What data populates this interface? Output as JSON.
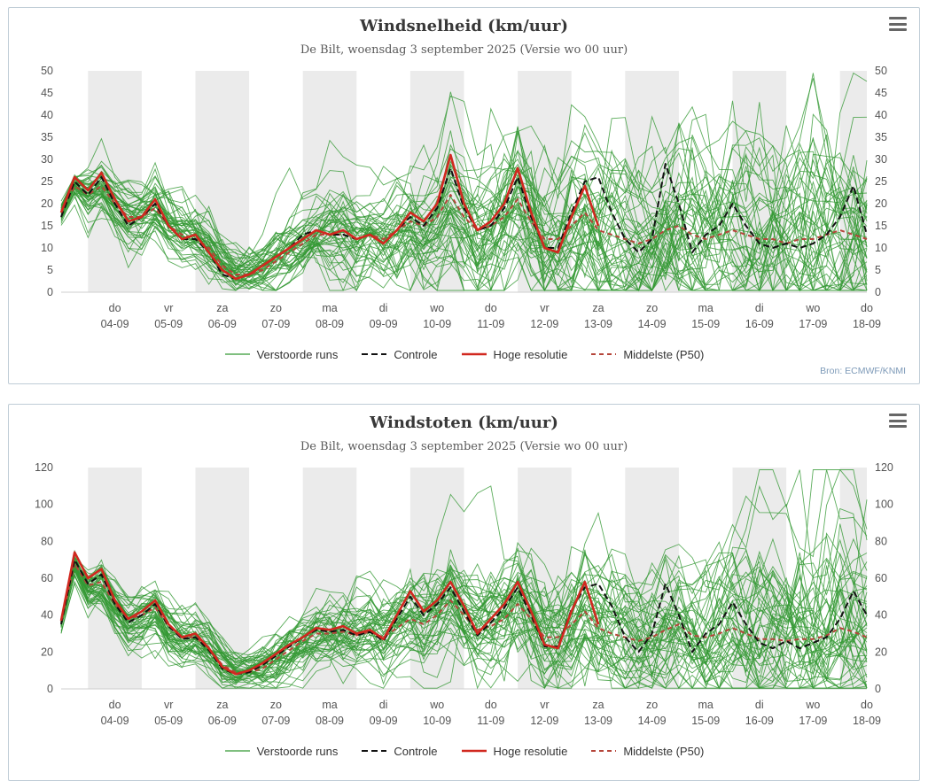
{
  "panels": [
    {
      "title": "Windsnelheid (km/uur)",
      "subtitle": "De Bilt, woensdag 3 september 2025 (Versie wo 00 uur)",
      "source": "Bron: ECMWF/KNMI"
    },
    {
      "title": "Windstoten (km/uur)",
      "subtitle": "De Bilt, woensdag 3 september 2025 (Versie wo 00 uur)",
      "source": ""
    }
  ],
  "legend": {
    "items": [
      {
        "label": "Verstoorde runs",
        "color": "#339933",
        "dash": "",
        "width": 1.2
      },
      {
        "label": "Controle",
        "color": "#111111",
        "dash": "7,4",
        "width": 2
      },
      {
        "label": "Hoge resolutie",
        "color": "#d1281f",
        "dash": "",
        "width": 2.6
      },
      {
        "label": "Middelste (P50)",
        "color": "#b5453a",
        "dash": "5,4",
        "width": 2
      }
    ]
  },
  "chart_data": [
    {
      "type": "line",
      "title": "Windsnelheid (km/uur)",
      "subtitle": "De Bilt, woensdag 3 september 2025 (Versie wo 00 uur)",
      "xlabel": "",
      "ylabel": "",
      "ylim": [
        0,
        50
      ],
      "ytick_step": 5,
      "x_days": {
        "start": 0,
        "end": 15,
        "step_days": 0.25,
        "start_label": "03-09 00 uur"
      },
      "x_ticks": [
        {
          "day": "do",
          "date": "04-09"
        },
        {
          "day": "vr",
          "date": "05-09"
        },
        {
          "day": "za",
          "date": "06-09"
        },
        {
          "day": "zo",
          "date": "07-09"
        },
        {
          "day": "ma",
          "date": "08-09"
        },
        {
          "day": "di",
          "date": "09-09"
        },
        {
          "day": "wo",
          "date": "10-09"
        },
        {
          "day": "do",
          "date": "11-09"
        },
        {
          "day": "vr",
          "date": "12-09"
        },
        {
          "day": "za",
          "date": "13-09"
        },
        {
          "day": "zo",
          "date": "14-09"
        },
        {
          "day": "ma",
          "date": "15-09"
        },
        {
          "day": "di",
          "date": "16-09"
        },
        {
          "day": "wo",
          "date": "17-09"
        },
        {
          "day": "do",
          "date": "18-09"
        }
      ],
      "band_color": "#ebebeb",
      "grid": false,
      "legend_position": "bottom",
      "series": [
        {
          "name": "Hoge resolutie",
          "color": "#d1281f",
          "dash": "",
          "width": 2.6,
          "values": [
            18,
            26,
            23,
            27,
            21,
            16,
            17,
            21,
            15,
            12,
            13,
            9,
            5,
            3,
            4,
            6,
            8,
            10,
            12,
            14,
            13,
            14,
            12,
            13,
            11,
            14,
            18,
            16,
            20,
            31,
            20,
            14,
            16,
            20,
            28,
            18,
            10,
            9,
            17,
            24,
            15
          ]
        },
        {
          "name": "Controle",
          "color": "#111111",
          "dash": "7,4",
          "width": 2,
          "values": [
            17,
            25,
            22,
            26,
            20,
            15,
            17,
            20,
            15,
            12,
            12,
            9,
            4,
            3,
            4,
            6,
            8,
            10,
            13,
            14,
            13,
            13,
            12,
            13,
            11,
            14,
            17,
            15,
            19,
            28,
            19,
            14,
            15,
            19,
            26,
            17,
            10,
            10,
            18,
            25,
            26,
            18,
            12,
            9,
            12,
            29,
            20,
            9,
            13,
            15,
            20,
            15,
            11,
            10,
            11,
            10,
            11,
            13,
            17,
            24,
            13
          ]
        },
        {
          "name": "Middelste (P50)",
          "color": "#b5453a",
          "dash": "5,4",
          "width": 2,
          "values": [
            18,
            24,
            22,
            24,
            20,
            17,
            17,
            19,
            15,
            13,
            12,
            10,
            6,
            4,
            4,
            5,
            7,
            9,
            11,
            13,
            13,
            13,
            12,
            13,
            12,
            14,
            16,
            15,
            17,
            22,
            17,
            14,
            15,
            17,
            21,
            16,
            12,
            12,
            15,
            18,
            14,
            13,
            12,
            11,
            12,
            14,
            15,
            13,
            12,
            13,
            14,
            13,
            12,
            12,
            11,
            12,
            12,
            13,
            14,
            13,
            12
          ]
        }
      ],
      "ensemble": {
        "name": "Verstoorde runs",
        "color": "#339933",
        "members": 50,
        "width": 0.9,
        "opacity": 0.8,
        "base_series": "Middelste (P50)",
        "spread": [
          1,
          1,
          2,
          2,
          2,
          3,
          3,
          3,
          3,
          3,
          3,
          3,
          2,
          2,
          2,
          2,
          3,
          3,
          3,
          3,
          4,
          4,
          4,
          4,
          4,
          5,
          5,
          5,
          5,
          6,
          6,
          6,
          6,
          6,
          7,
          7,
          7,
          7,
          7,
          7,
          8,
          8,
          8,
          8,
          8,
          8,
          9,
          9,
          9,
          9,
          9,
          9,
          10,
          10,
          10,
          10,
          10,
          10,
          10,
          10,
          10
        ]
      }
    },
    {
      "type": "line",
      "title": "Windstoten (km/uur)",
      "subtitle": "De Bilt, woensdag 3 september 2025 (Versie wo 00 uur)",
      "xlabel": "",
      "ylabel": "",
      "ylim": [
        0,
        120
      ],
      "ytick_step": 20,
      "x_days": {
        "start": 0,
        "end": 15,
        "step_days": 0.25,
        "start_label": "03-09 00 uur"
      },
      "x_ticks": [
        {
          "day": "do",
          "date": "04-09"
        },
        {
          "day": "vr",
          "date": "05-09"
        },
        {
          "day": "za",
          "date": "06-09"
        },
        {
          "day": "zo",
          "date": "07-09"
        },
        {
          "day": "ma",
          "date": "08-09"
        },
        {
          "day": "di",
          "date": "09-09"
        },
        {
          "day": "wo",
          "date": "10-09"
        },
        {
          "day": "do",
          "date": "11-09"
        },
        {
          "day": "vr",
          "date": "12-09"
        },
        {
          "day": "za",
          "date": "13-09"
        },
        {
          "day": "zo",
          "date": "14-09"
        },
        {
          "day": "ma",
          "date": "15-09"
        },
        {
          "day": "di",
          "date": "16-09"
        },
        {
          "day": "wo",
          "date": "17-09"
        },
        {
          "day": "do",
          "date": "18-09"
        }
      ],
      "band_color": "#ebebeb",
      "grid": false,
      "legend_position": "bottom",
      "series": [
        {
          "name": "Hoge resolutie",
          "color": "#d1281f",
          "dash": "",
          "width": 2.6,
          "values": [
            37,
            74,
            60,
            65,
            48,
            38,
            42,
            48,
            35,
            28,
            30,
            22,
            12,
            8,
            10,
            14,
            19,
            24,
            28,
            33,
            32,
            34,
            30,
            32,
            27,
            40,
            53,
            42,
            48,
            58,
            45,
            30,
            38,
            46,
            58,
            42,
            24,
            22,
            42,
            58,
            35
          ]
        },
        {
          "name": "Controle",
          "color": "#111111",
          "dash": "7,4",
          "width": 2,
          "values": [
            35,
            70,
            57,
            62,
            46,
            36,
            40,
            46,
            34,
            27,
            28,
            21,
            11,
            8,
            9,
            13,
            18,
            23,
            28,
            32,
            31,
            32,
            29,
            31,
            26,
            38,
            50,
            40,
            46,
            55,
            42,
            29,
            36,
            44,
            55,
            40,
            23,
            23,
            43,
            55,
            57,
            45,
            28,
            20,
            30,
            57,
            40,
            20,
            30,
            35,
            47,
            35,
            25,
            22,
            26,
            22,
            25,
            28,
            38,
            53,
            40
          ]
        },
        {
          "name": "Middelste (P50)",
          "color": "#b5453a",
          "dash": "5,4",
          "width": 2,
          "values": [
            36,
            68,
            56,
            58,
            46,
            38,
            40,
            44,
            34,
            28,
            28,
            22,
            13,
            9,
            9,
            11,
            16,
            21,
            26,
            30,
            30,
            31,
            29,
            31,
            28,
            33,
            38,
            35,
            40,
            48,
            40,
            32,
            34,
            38,
            46,
            38,
            28,
            28,
            35,
            42,
            33,
            30,
            28,
            26,
            28,
            32,
            35,
            29,
            28,
            30,
            33,
            30,
            27,
            27,
            26,
            27,
            27,
            29,
            33,
            31,
            28
          ]
        }
      ],
      "ensemble": {
        "name": "Verstoorde runs",
        "color": "#339933",
        "members": 50,
        "width": 0.9,
        "opacity": 0.8,
        "base_series": "Middelste (P50)",
        "spread": [
          2,
          3,
          4,
          5,
          5,
          6,
          6,
          6,
          6,
          6,
          6,
          6,
          5,
          4,
          4,
          5,
          6,
          6,
          7,
          7,
          8,
          8,
          8,
          8,
          9,
          9,
          10,
          10,
          10,
          11,
          11,
          11,
          12,
          12,
          13,
          13,
          13,
          14,
          14,
          14,
          15,
          15,
          15,
          16,
          16,
          16,
          17,
          17,
          17,
          18,
          18,
          18,
          19,
          19,
          19,
          20,
          20,
          20,
          20,
          20,
          20
        ]
      }
    }
  ]
}
